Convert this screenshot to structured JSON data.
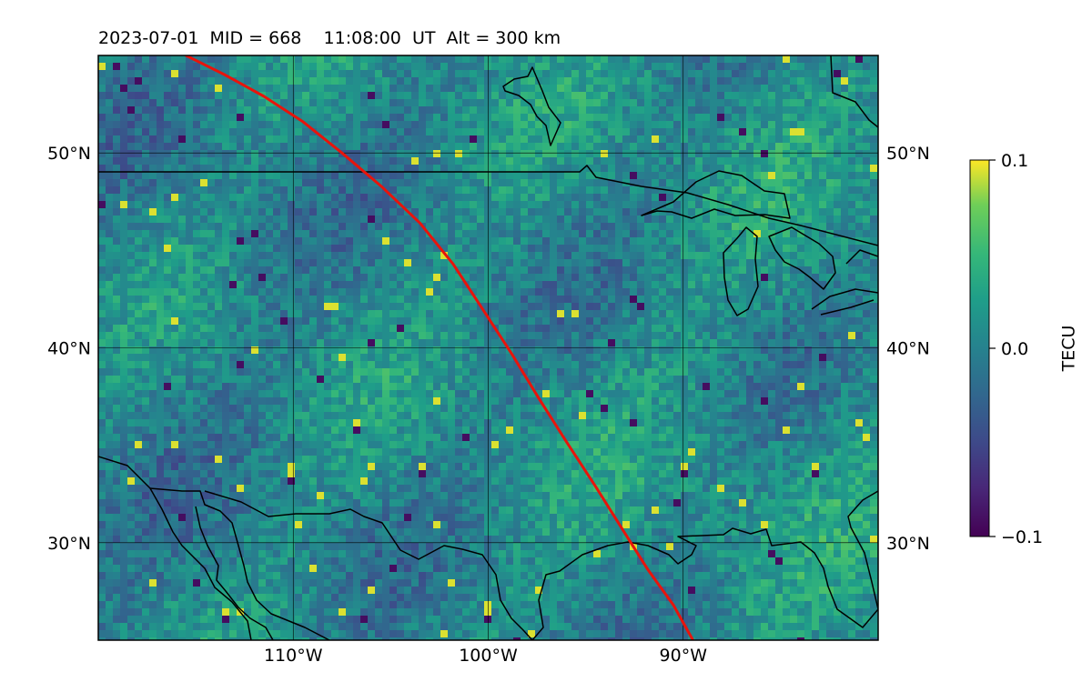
{
  "title": "2023-07-01  MID = 668    11:08:00  UT  Alt = 300 km",
  "map": {
    "lon_range": [
      -120,
      -80
    ],
    "lat_range": [
      25,
      55
    ],
    "x_ticks": [
      {
        "value": -110,
        "label": "110°W"
      },
      {
        "value": -100,
        "label": "100°W"
      },
      {
        "value": -90,
        "label": "90°W"
      }
    ],
    "y_ticks": [
      {
        "value": 50,
        "label": "50°N"
      },
      {
        "value": 40,
        "label": "40°N"
      },
      {
        "value": 30,
        "label": "30°N"
      }
    ],
    "grid": true,
    "colormap": "viridis",
    "track_color": "#e8140c",
    "coast_color": "#000000",
    "track": [
      [
        -115.5,
        55
      ],
      [
        -113.5,
        54.0
      ],
      [
        -111.5,
        52.9
      ],
      [
        -109.5,
        51.6
      ],
      [
        -107.5,
        50.0
      ],
      [
        -105.5,
        48.3
      ],
      [
        -103.5,
        46.4
      ],
      [
        -101.8,
        44.3
      ],
      [
        -100.3,
        42.0
      ],
      [
        -98.8,
        39.7
      ],
      [
        -97.4,
        37.4
      ],
      [
        -96.0,
        35.2
      ],
      [
        -94.5,
        32.9
      ],
      [
        -93.0,
        30.5
      ],
      [
        -91.8,
        28.6
      ],
      [
        -90.5,
        26.8
      ],
      [
        -89.5,
        25.0
      ]
    ]
  },
  "colorbar": {
    "label": "TECU",
    "min": -0.1,
    "max": 0.1,
    "ticks": [
      {
        "value": 0.1,
        "label": "0.1"
      },
      {
        "value": 0.0,
        "label": "0.0"
      },
      {
        "value": -0.1,
        "label": "−0.1"
      }
    ]
  }
}
